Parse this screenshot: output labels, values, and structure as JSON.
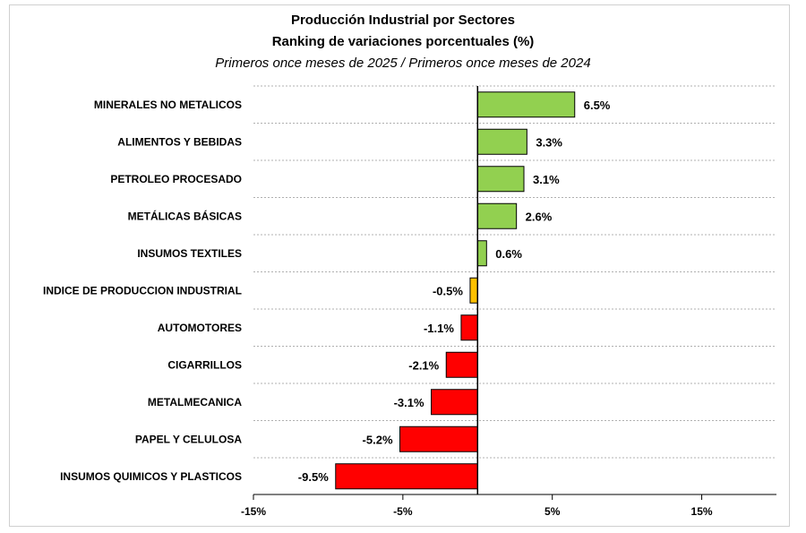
{
  "chart_data": {
    "type": "bar",
    "orientation": "horizontal",
    "title": "Producción Industrial por Sectores",
    "subtitle": "Ranking de variaciones porcentuales (%)",
    "subtitle2": "Primeros once meses de 2025 / Primeros once meses de 2024",
    "categories": [
      "MINERALES NO METALICOS",
      "ALIMENTOS Y BEBIDAS",
      "PETROLEO PROCESADO",
      "METÁLICAS BÁSICAS",
      "INSUMOS TEXTILES",
      "INDICE DE PRODUCCION INDUSTRIAL",
      "AUTOMOTORES",
      "CIGARRILLOS",
      "METALMECANICA",
      "PAPEL Y CELULOSA",
      "INSUMOS QUIMICOS Y PLASTICOS"
    ],
    "values": [
      6.5,
      3.3,
      3.1,
      2.6,
      0.6,
      -0.5,
      -1.1,
      -2.1,
      -3.1,
      -5.2,
      -9.5
    ],
    "data_labels": [
      "6.5%",
      "3.3%",
      "3.1%",
      "2.6%",
      "0.6%",
      "-0.5%",
      "-1.1%",
      "-2.1%",
      "-3.1%",
      "-5.2%",
      "-9.5%"
    ],
    "xlim": [
      -15,
      20
    ],
    "xticks": [
      -15,
      -5,
      5,
      15
    ],
    "xtick_labels": [
      "-15%",
      "-5%",
      "5%",
      "15%"
    ],
    "grid": "horizontal dashed",
    "colors": {
      "positive": "#92d050",
      "index": "#ffc000",
      "negative": "#ff0000"
    }
  }
}
